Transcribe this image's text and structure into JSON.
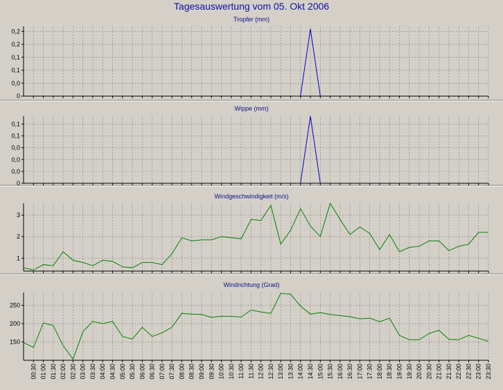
{
  "title": "Tagesauswertung vom 05. Okt 2006",
  "colors": {
    "background": "#d4d0c8",
    "rain": "#0000c0",
    "wind": "#008000",
    "title": "#1010a0"
  },
  "x_tick_labels": [
    "00:30",
    "01:00",
    "01:30",
    "02:00",
    "02:30",
    "03:00",
    "03:30",
    "04:00",
    "04:30",
    "05:00",
    "05:30",
    "06:00",
    "06:30",
    "07:00",
    "07:30",
    "08:00",
    "08:30",
    "09:00",
    "09:30",
    "10:00",
    "10:30",
    "11:00",
    "11:30",
    "12:00",
    "12:30",
    "13:00",
    "13:30",
    "14:00",
    "14:30",
    "15:00",
    "15:30",
    "16:00",
    "16:30",
    "17:00",
    "17:30",
    "18:00",
    "18:30",
    "19:00",
    "19:30",
    "20:00",
    "20:30",
    "21:00",
    "21:30",
    "22:00",
    "22:30",
    "23:00",
    "23:30"
  ],
  "chart_data": [
    {
      "type": "line",
      "title": "Tropfer (mm)",
      "ylim": [
        0,
        0.27
      ],
      "y_tick_values": [
        0,
        0.05,
        0.1,
        0.15,
        0.2,
        0.25
      ],
      "y_tick_labels": [
        "0",
        "0,0",
        "0,1",
        "0,1",
        "0,2",
        "0,2"
      ],
      "grid": true,
      "series": [
        {
          "x": [
            "14:00",
            "14:30",
            "15:00"
          ],
          "y": [
            0,
            0.26,
            0
          ],
          "color": "#0000c0"
        }
      ]
    },
    {
      "type": "line",
      "title": "Wippe (mm)",
      "ylim": [
        0,
        0.17
      ],
      "y_tick_values": [
        0,
        0.03,
        0.06,
        0.09,
        0.12,
        0.15
      ],
      "y_tick_labels": [
        "0",
        "0,0",
        "0,0",
        "0,0",
        "0,1",
        "0,1"
      ],
      "grid": true,
      "series": [
        {
          "x": [
            "14:00",
            "14:30",
            "15:00"
          ],
          "y": [
            0,
            0.17,
            0
          ],
          "color": "#0000c0"
        }
      ]
    },
    {
      "type": "line",
      "title": "Windgeschwindigkeit (m/s)",
      "ylim": [
        0.4,
        3.55
      ],
      "y_tick_values": [
        1,
        2,
        3
      ],
      "y_tick_labels": [
        "1",
        "2",
        "3"
      ],
      "grid": true,
      "series": [
        {
          "x": [
            "00:00",
            "00:30",
            "01:00",
            "01:30",
            "02:00",
            "02:30",
            "03:00",
            "03:30",
            "04:00",
            "04:30",
            "05:00",
            "05:30",
            "06:00",
            "06:30",
            "07:00",
            "07:30",
            "08:00",
            "08:30",
            "09:00",
            "09:30",
            "10:00",
            "10:30",
            "11:00",
            "11:30",
            "12:00",
            "12:30",
            "13:00",
            "13:30",
            "14:00",
            "14:30",
            "15:00",
            "15:30",
            "16:00",
            "16:30",
            "17:00",
            "17:30",
            "18:00",
            "18:30",
            "19:00",
            "19:30",
            "20:00",
            "20:30",
            "21:00",
            "21:30",
            "22:00",
            "22:30",
            "23:00",
            "23:30"
          ],
          "y": [
            0.55,
            0.45,
            0.7,
            0.65,
            1.3,
            0.9,
            0.8,
            0.65,
            0.9,
            0.85,
            0.6,
            0.55,
            0.8,
            0.8,
            0.7,
            1.2,
            1.95,
            1.8,
            1.85,
            1.85,
            2.0,
            1.95,
            1.9,
            2.8,
            2.75,
            3.45,
            1.65,
            2.3,
            3.3,
            2.5,
            2.0,
            3.55,
            2.8,
            2.1,
            2.45,
            2.15,
            1.4,
            2.1,
            1.3,
            1.5,
            1.55,
            1.8,
            1.8,
            1.35,
            1.55,
            1.65,
            2.2,
            2.2
          ],
          "color": "#008000"
        }
      ]
    },
    {
      "type": "line",
      "title": "Windrichtung (Grad)",
      "ylim": [
        100,
        285
      ],
      "y_tick_values": [
        150,
        200,
        250
      ],
      "y_tick_labels": [
        "150",
        "200",
        "250"
      ],
      "grid": true,
      "series": [
        {
          "x": [
            "00:00",
            "00:30",
            "01:00",
            "01:30",
            "02:00",
            "02:30",
            "03:00",
            "03:30",
            "04:00",
            "04:30",
            "05:00",
            "05:30",
            "06:00",
            "06:30",
            "07:00",
            "07:30",
            "08:00",
            "08:30",
            "09:00",
            "09:30",
            "10:00",
            "10:30",
            "11:00",
            "11:30",
            "12:00",
            "12:30",
            "13:00",
            "13:30",
            "14:00",
            "14:30",
            "15:00",
            "15:30",
            "16:00",
            "16:30",
            "17:00",
            "17:30",
            "18:00",
            "18:30",
            "19:00",
            "19:30",
            "20:00",
            "20:30",
            "21:00",
            "21:30",
            "22:00",
            "22:30",
            "23:00",
            "23:30"
          ],
          "y": [
            148,
            135,
            202,
            195,
            140,
            103,
            178,
            206,
            200,
            206,
            165,
            158,
            190,
            165,
            175,
            190,
            228,
            226,
            225,
            217,
            220,
            220,
            218,
            237,
            232,
            228,
            283,
            280,
            248,
            226,
            230,
            225,
            222,
            219,
            213,
            215,
            205,
            215,
            168,
            156,
            156,
            173,
            182,
            157,
            156,
            168,
            160,
            152
          ],
          "color": "#008000"
        }
      ]
    }
  ]
}
